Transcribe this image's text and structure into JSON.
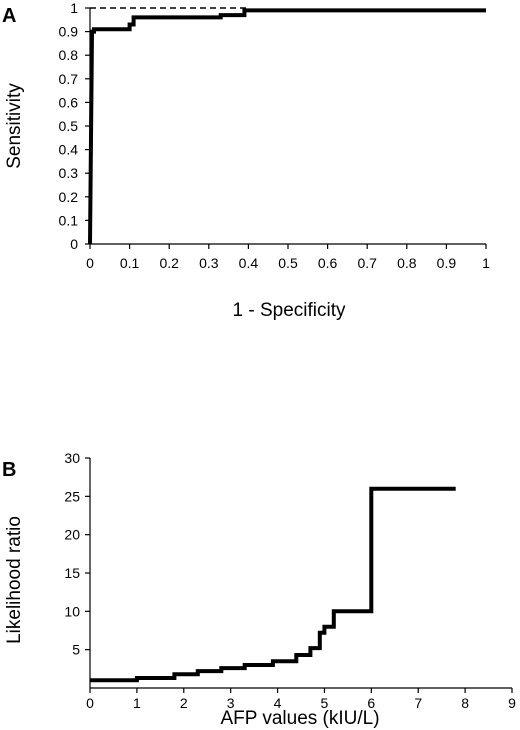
{
  "chart_data": [
    {
      "panel_label": "A",
      "type": "line",
      "xlabel": "1 - Specificity",
      "ylabel": "Sensitivity",
      "xlim": [
        0,
        1
      ],
      "ylim": [
        0,
        1
      ],
      "x_ticks": [
        "0",
        "0.1",
        "0.2",
        "0.3",
        "0.4",
        "0.5",
        "0.6",
        "0.7",
        "0.8",
        "0.9",
        "1"
      ],
      "y_ticks": [
        "0",
        "0.1",
        "0.2",
        "0.3",
        "0.4",
        "0.5",
        "0.6",
        "0.7",
        "0.8",
        "0.9",
        "1"
      ],
      "grid": false,
      "series": [
        {
          "style": "solid-step",
          "x": [
            0,
            0.005,
            0.01,
            0.01,
            0.1,
            0.1,
            0.11,
            0.11,
            0.33,
            0.33,
            0.39,
            0.39,
            0.4,
            1
          ],
          "y": [
            0,
            0.9,
            0.9,
            0.91,
            0.91,
            0.93,
            0.93,
            0.96,
            0.96,
            0.97,
            0.97,
            0.99,
            0.99,
            0.99
          ]
        },
        {
          "style": "dashed-reference",
          "x": [
            0,
            0.4
          ],
          "y": [
            1,
            1
          ]
        }
      ]
    },
    {
      "panel_label": "B",
      "type": "line",
      "xlabel": "AFP values (kIU/L)",
      "ylabel": "Likelihood ratio",
      "xlim": [
        0,
        9
      ],
      "ylim": [
        0,
        30
      ],
      "x_ticks": [
        "0",
        "1",
        "2",
        "3",
        "4",
        "5",
        "6",
        "7",
        "8",
        "9"
      ],
      "y_ticks": [
        "5",
        "10",
        "15",
        "20",
        "25",
        "30"
      ],
      "grid": false,
      "series": [
        {
          "style": "solid-step",
          "x": [
            0,
            1,
            1,
            1.8,
            1.8,
            2.3,
            2.3,
            2.8,
            2.8,
            3.3,
            3.3,
            3.9,
            3.9,
            4.4,
            4.4,
            4.7,
            4.7,
            4.9,
            4.9,
            5.0,
            5.0,
            5.2,
            5.2,
            6.0,
            6.0,
            7.8
          ],
          "y": [
            1,
            1,
            1.3,
            1.3,
            1.8,
            1.8,
            2.2,
            2.2,
            2.6,
            2.6,
            3.0,
            3.0,
            3.5,
            3.5,
            4.3,
            4.3,
            5.2,
            5.2,
            7.2,
            7.2,
            8.0,
            8.0,
            10.0,
            10.0,
            26.0,
            26.0
          ]
        }
      ]
    }
  ]
}
